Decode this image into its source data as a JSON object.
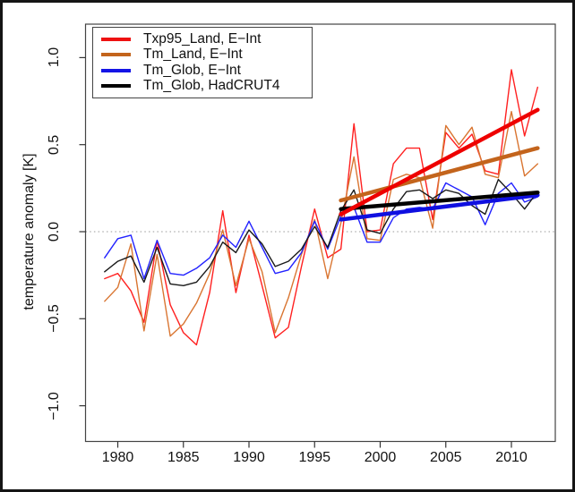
{
  "figure": {
    "frame_color": "#151515",
    "background": "#ffffff",
    "plot_border_color": "#444444",
    "zero_line_color": "#999999"
  },
  "legend": {
    "items": [
      {
        "label": "Txp95_Land, E−Int",
        "color": "#ee1111"
      },
      {
        "label": "Tm_Land, E−Int",
        "color": "#c3641c"
      },
      {
        "label": "Tm_Glob, E−Int",
        "color": "#1414e6"
      },
      {
        "label": "Tm_Glob, HadCRUT4",
        "color": "#000000"
      }
    ]
  },
  "chart_data": {
    "type": "line",
    "title": "",
    "xlabel": "",
    "ylabel": "temperature anomaly [K]",
    "xlim": [
      1977.7,
      2013.3
    ],
    "ylim": [
      -1.1,
      1.1
    ],
    "grid": false,
    "zero_line": 0,
    "legend_position": "top-left",
    "x_ticks": [
      1980,
      1985,
      1990,
      1995,
      2000,
      2005,
      2010
    ],
    "x_tick_labels": [
      "1980",
      "1985",
      "1990",
      "1995",
      "2000",
      "2005",
      "2010"
    ],
    "y_ticks": [
      1.0,
      0.5,
      0.0,
      -0.5,
      -1.0
    ],
    "y_tick_labels": [
      "1.0",
      "0.5",
      "0.0",
      "−0.5",
      "−1.0"
    ],
    "x": [
      1979,
      1980,
      1981,
      1982,
      1983,
      1984,
      1985,
      1986,
      1987,
      1988,
      1989,
      1990,
      1991,
      1992,
      1993,
      1994,
      1995,
      1996,
      1997,
      1998,
      1999,
      2000,
      2001,
      2002,
      2003,
      2004,
      2005,
      2006,
      2007,
      2008,
      2009,
      2010,
      2011,
      2012
    ],
    "series": [
      {
        "name": "Txp95_Land, E−Int",
        "color": "#ff2020",
        "width": 1.4,
        "values": [
          -0.27,
          -0.24,
          -0.34,
          -0.52,
          -0.05,
          -0.42,
          -0.58,
          -0.65,
          -0.35,
          0.12,
          -0.35,
          -0.02,
          -0.31,
          -0.61,
          -0.55,
          -0.2,
          0.13,
          -0.15,
          -0.1,
          0.62,
          0.0,
          0.01,
          0.39,
          0.48,
          0.48,
          0.07,
          0.57,
          0.48,
          0.56,
          0.35,
          0.33,
          0.93,
          0.55,
          0.83
        ]
      },
      {
        "name": "Tm_Land, E−Int",
        "color": "#d97531",
        "width": 1.4,
        "values": [
          -0.4,
          -0.32,
          -0.07,
          -0.57,
          -0.13,
          -0.6,
          -0.53,
          -0.41,
          -0.24,
          0.01,
          -0.31,
          -0.04,
          -0.23,
          -0.58,
          -0.38,
          -0.13,
          0.07,
          -0.27,
          0.05,
          0.43,
          -0.04,
          -0.05,
          0.3,
          0.33,
          0.31,
          0.02,
          0.61,
          0.5,
          0.6,
          0.33,
          0.31,
          0.69,
          0.32,
          0.39
        ]
      },
      {
        "name": "Tm_Glob, E−Int",
        "color": "#2222ff",
        "width": 1.4,
        "values": [
          -0.15,
          -0.04,
          -0.02,
          -0.27,
          -0.05,
          -0.24,
          -0.25,
          -0.21,
          -0.15,
          -0.02,
          -0.09,
          0.06,
          -0.09,
          -0.24,
          -0.22,
          -0.12,
          0.06,
          -0.1,
          0.09,
          0.14,
          -0.06,
          -0.06,
          0.08,
          0.13,
          0.14,
          0.13,
          0.28,
          0.24,
          0.2,
          0.04,
          0.22,
          0.28,
          0.17,
          0.2
        ]
      },
      {
        "name": "Tm_Glob, HadCRUT4",
        "color": "#1a1a1a",
        "width": 1.4,
        "values": [
          -0.23,
          -0.17,
          -0.14,
          -0.29,
          -0.09,
          -0.3,
          -0.31,
          -0.29,
          -0.2,
          -0.06,
          -0.12,
          0.01,
          -0.07,
          -0.2,
          -0.17,
          -0.1,
          0.03,
          -0.09,
          0.12,
          0.24,
          0.01,
          -0.01,
          0.13,
          0.23,
          0.24,
          0.19,
          0.24,
          0.22,
          0.15,
          0.1,
          0.3,
          0.22,
          0.13,
          0.23
        ]
      },
      {
        "name": "trend Tm_Land, E−Int",
        "color": "#c3641c",
        "width": 4.5,
        "trend": true,
        "x": [
          1997,
          2012
        ],
        "values": [
          0.18,
          0.48
        ]
      },
      {
        "name": "trend Tm_Glob, E−Int",
        "color": "#0f0fe0",
        "width": 4.5,
        "trend": true,
        "x": [
          1997,
          2012
        ],
        "values": [
          0.07,
          0.21
        ]
      },
      {
        "name": "trend Tm_Glob, HadCRUT4",
        "color": "#000000",
        "width": 4.5,
        "trend": true,
        "x": [
          1997,
          2012
        ],
        "values": [
          0.13,
          0.225
        ]
      },
      {
        "name": "trend Txp95_Land, E−Int",
        "color": "#ee0000",
        "width": 4.5,
        "trend": true,
        "x": [
          1997,
          2012
        ],
        "values": [
          0.1,
          0.7
        ]
      }
    ]
  }
}
